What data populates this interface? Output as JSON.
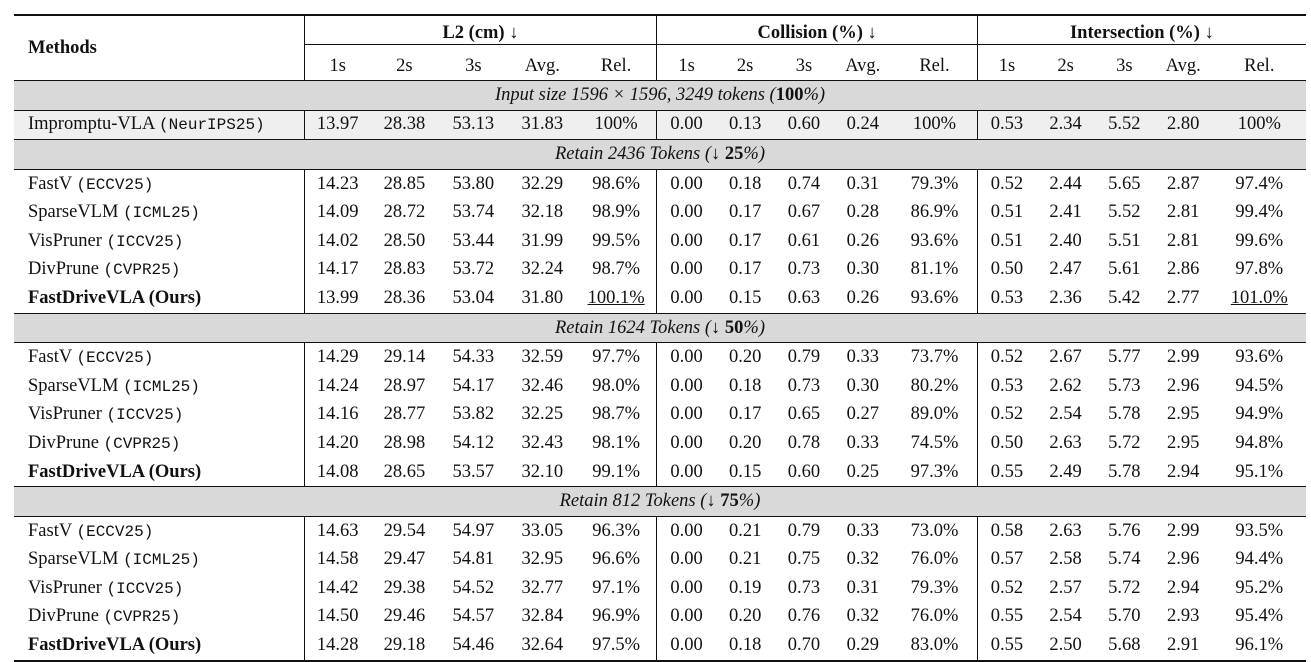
{
  "header": {
    "methods": "Methods",
    "groups": [
      {
        "label": "L2 (cm) ↓"
      },
      {
        "label": "Collision (%) ↓"
      },
      {
        "label": "Intersection (%) ↓"
      }
    ],
    "subcols": [
      "1s",
      "2s",
      "3s",
      "Avg.",
      "Rel."
    ]
  },
  "sections": [
    {
      "title_pre": "Input size 1596 × 1596, 3249 tokens (",
      "title_bold": "100",
      "title_post": "%)",
      "kind": "base",
      "rows": [
        {
          "name": "Imprompt​u-VLA",
          "venue": "(NeurIPS25)",
          "cells": [
            "13.97",
            "28.38",
            "53.13",
            "31.83",
            "100%",
            "0.00",
            "0.13",
            "0.60",
            "0.24",
            "100%",
            "0.53",
            "2.34",
            "5.52",
            "2.80",
            "100%"
          ],
          "bold": [],
          "underline": []
        }
      ]
    },
    {
      "title_pre": "Retain 2436 Tokens (↓ ",
      "title_bold": "25",
      "title_post": "%)",
      "kind": "normal",
      "rows": [
        {
          "name": "FastV",
          "venue": "(ECCV25)",
          "cells": [
            "14.23",
            "28.85",
            "53.80",
            "32.29",
            "98.6%",
            "0.00",
            "0.18",
            "0.74",
            "0.31",
            "79.3%",
            "0.52",
            "2.44",
            "5.65",
            "2.87",
            "97.4%"
          ],
          "bold": [],
          "underline": []
        },
        {
          "name": "SparseVLM",
          "venue": "(ICML25)",
          "cells": [
            "14.09",
            "28.72",
            "53.74",
            "32.18",
            "98.9%",
            "0.00",
            "0.17",
            "0.67",
            "0.28",
            "86.9%",
            "0.51",
            "2.41",
            "5.52",
            "2.81",
            "99.4%"
          ],
          "bold": [],
          "underline": []
        },
        {
          "name": "VisPruner",
          "venue": "(ICCV25)",
          "cells": [
            "14.02",
            "28.50",
            "53.44",
            "31.99",
            "99.5%",
            "0.00",
            "0.17",
            "0.61",
            "0.26",
            "93.6%",
            "0.51",
            "2.40",
            "5.51",
            "2.81",
            "99.6%"
          ],
          "bold": [
            7
          ],
          "underline": []
        },
        {
          "name": "DivPrune",
          "venue": "(CVPR25)",
          "cells": [
            "14.17",
            "28.83",
            "53.72",
            "32.24",
            "98.7%",
            "0.00",
            "0.17",
            "0.73",
            "0.30",
            "81.1%",
            "0.50",
            "2.47",
            "5.61",
            "2.86",
            "97.8%"
          ],
          "bold": [
            10
          ],
          "underline": []
        },
        {
          "name": "FastDriveVLA (Ours)",
          "venue": "",
          "ours": true,
          "cells": [
            "13.99",
            "28.36",
            "53.04",
            "31.80",
            "100.1%",
            "0.00",
            "0.15",
            "0.63",
            "0.26",
            "93.6%",
            "0.53",
            "2.36",
            "5.42",
            "2.77",
            "101.0%"
          ],
          "bold": [
            0,
            1,
            2,
            3,
            4,
            5,
            6,
            8,
            9,
            11,
            12,
            13,
            14
          ],
          "underline": [
            4,
            14
          ]
        }
      ]
    },
    {
      "title_pre": "Retain 1624 Tokens (↓ ",
      "title_bold": "50",
      "title_post": "%)",
      "kind": "normal",
      "rows": [
        {
          "name": "FastV",
          "venue": "(ECCV25)",
          "cells": [
            "14.29",
            "29.14",
            "54.33",
            "32.59",
            "97.7%",
            "0.00",
            "0.20",
            "0.79",
            "0.33",
            "73.7%",
            "0.52",
            "2.67",
            "5.77",
            "2.99",
            "93.6%"
          ],
          "bold": [],
          "underline": []
        },
        {
          "name": "SparseVLM",
          "venue": "(ICML25)",
          "cells": [
            "14.24",
            "28.97",
            "54.17",
            "32.46",
            "98.0%",
            "0.00",
            "0.18",
            "0.73",
            "0.30",
            "80.2%",
            "0.53",
            "2.62",
            "5.73",
            "2.96",
            "94.5%"
          ],
          "bold": [],
          "underline": []
        },
        {
          "name": "VisPruner",
          "venue": "(ICCV25)",
          "cells": [
            "14.16",
            "28.77",
            "53.82",
            "32.25",
            "98.7%",
            "0.00",
            "0.17",
            "0.65",
            "0.27",
            "89.0%",
            "0.52",
            "2.54",
            "5.78",
            "2.95",
            "94.9%"
          ],
          "bold": [],
          "underline": []
        },
        {
          "name": "DivPrune",
          "venue": "(CVPR25)",
          "cells": [
            "14.20",
            "28.98",
            "54.12",
            "32.43",
            "98.1%",
            "0.00",
            "0.20",
            "0.78",
            "0.33",
            "74.5%",
            "0.50",
            "2.63",
            "5.72",
            "2.95",
            "94.8%"
          ],
          "bold": [
            10,
            12
          ],
          "underline": []
        },
        {
          "name": "FastDriveVLA (Ours)",
          "venue": "",
          "ours": true,
          "cells": [
            "14.08",
            "28.65",
            "53.57",
            "32.10",
            "99.1%",
            "0.00",
            "0.15",
            "0.60",
            "0.25",
            "97.3%",
            "0.55",
            "2.49",
            "5.78",
            "2.94",
            "95.1%"
          ],
          "bold": [
            0,
            1,
            2,
            3,
            4,
            5,
            6,
            7,
            8,
            9,
            11,
            13,
            14
          ],
          "underline": []
        }
      ]
    },
    {
      "title_pre": "Retain 812 Tokens (↓ ",
      "title_bold": "75",
      "title_post": "%)",
      "kind": "normal",
      "rows": [
        {
          "name": "FastV",
          "venue": "(ECCV25)",
          "cells": [
            "14.63",
            "29.54",
            "54.97",
            "33.05",
            "96.3%",
            "0.00",
            "0.21",
            "0.79",
            "0.33",
            "73.0%",
            "0.58",
            "2.63",
            "5.76",
            "2.99",
            "93.5%"
          ],
          "bold": [],
          "underline": []
        },
        {
          "name": "SparseVLM",
          "venue": "(ICML25)",
          "cells": [
            "14.58",
            "29.47",
            "54.81",
            "32.95",
            "96.6%",
            "0.00",
            "0.21",
            "0.75",
            "0.32",
            "76.0%",
            "0.57",
            "2.58",
            "5.74",
            "2.96",
            "94.4%"
          ],
          "bold": [],
          "underline": []
        },
        {
          "name": "VisPruner",
          "venue": "(ICCV25)",
          "cells": [
            "14.42",
            "29.38",
            "54.52",
            "32.77",
            "97.1%",
            "0.00",
            "0.19",
            "0.73",
            "0.31",
            "79.3%",
            "0.52",
            "2.57",
            "5.72",
            "2.94",
            "95.2%"
          ],
          "bold": [
            10
          ],
          "underline": []
        },
        {
          "name": "DivPrune",
          "venue": "(CVPR25)",
          "cells": [
            "14.50",
            "29.46",
            "54.57",
            "32.84",
            "96.9%",
            "0.00",
            "0.20",
            "0.76",
            "0.32",
            "76.0%",
            "0.55",
            "2.54",
            "5.70",
            "2.93",
            "95.4%"
          ],
          "bold": [],
          "underline": []
        },
        {
          "name": "FastDriveVLA (Ours)",
          "venue": "",
          "ours": true,
          "cells": [
            "14.28",
            "29.18",
            "54.46",
            "32.64",
            "97.5%",
            "0.00",
            "0.18",
            "0.70",
            "0.29",
            "83.0%",
            "0.55",
            "2.50",
            "5.68",
            "2.91",
            "96.1%"
          ],
          "bold": [
            0,
            1,
            2,
            3,
            4,
            5,
            6,
            7,
            8,
            9,
            11,
            12,
            13,
            14
          ],
          "underline": []
        }
      ]
    }
  ]
}
